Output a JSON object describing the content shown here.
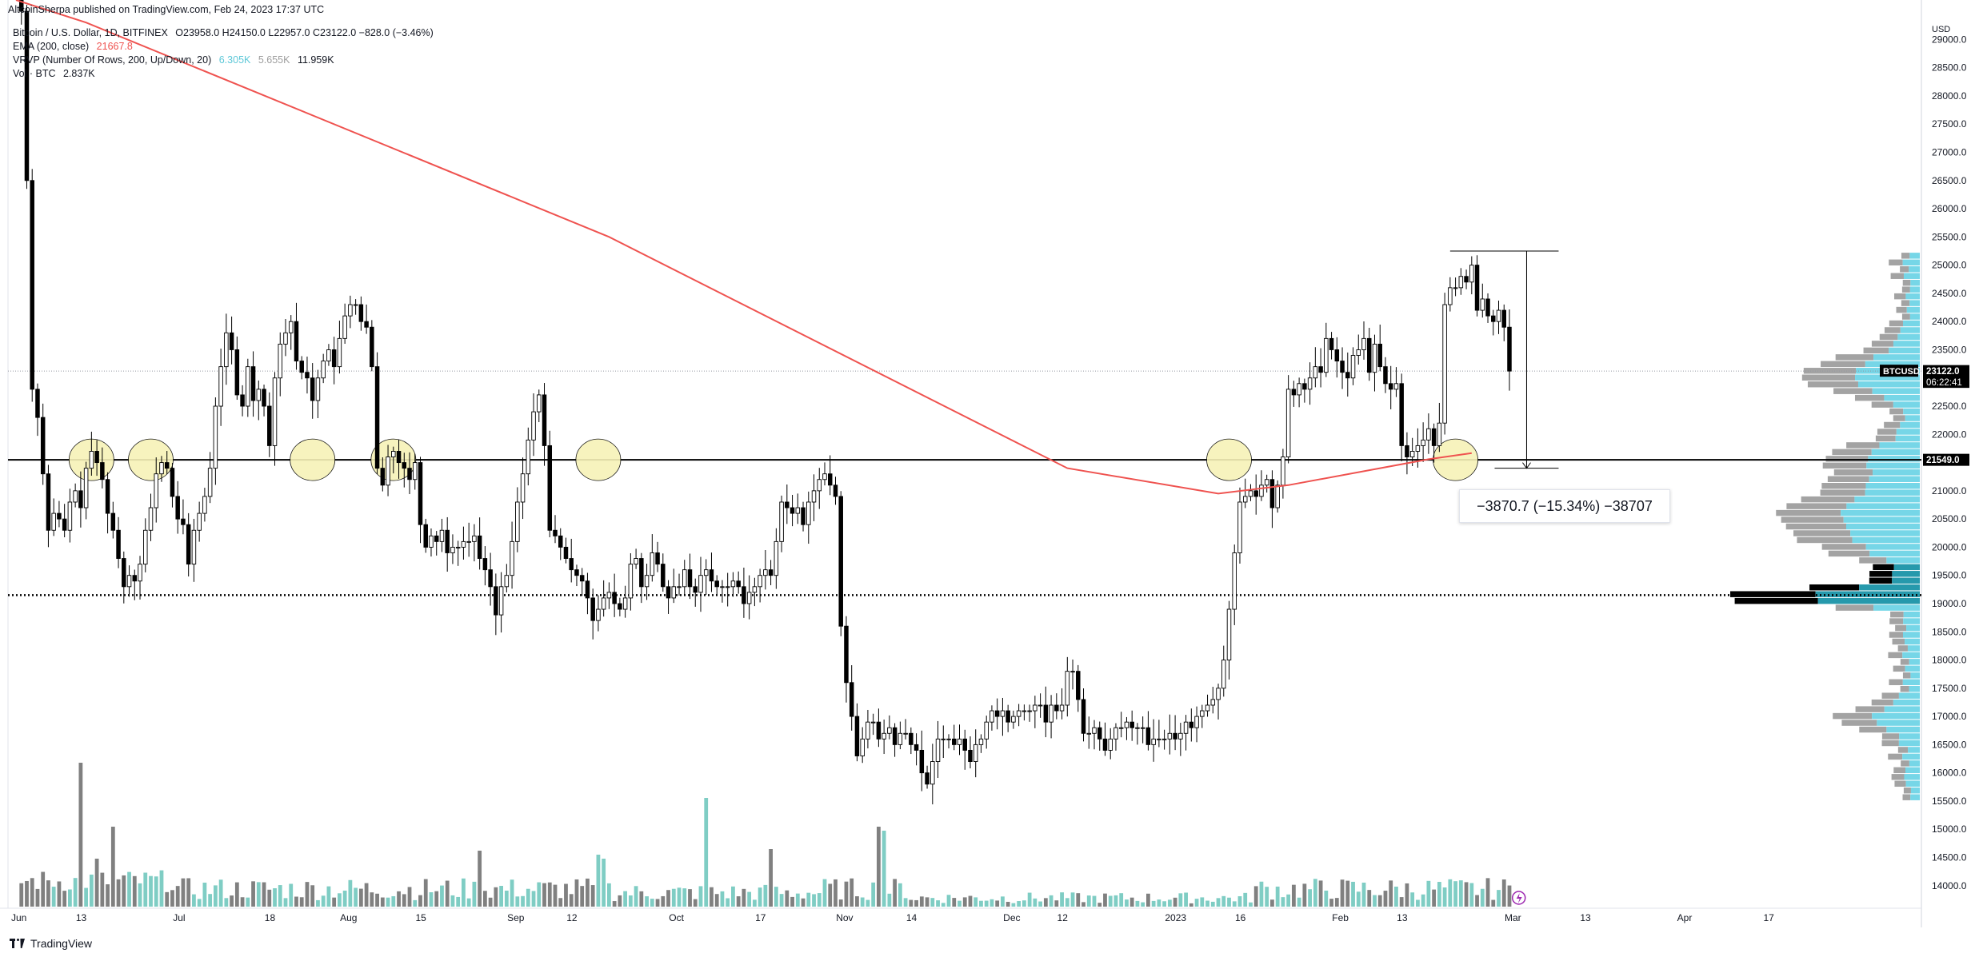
{
  "header": {
    "published": "AltcoinSherpa published on TradingView.com, Feb 24, 2023 17:37 UTC",
    "symbol": "Bitcoin / U.S. Dollar, 1D, BITFINEX",
    "ohlc": "O23958.0  H24150.0  L22957.0  C23122.0  −828.0 (−3.46%)"
  },
  "indicators": [
    {
      "label": "EMA (200, close)",
      "value": "21667.8",
      "color": "#ef5350"
    },
    {
      "label": "VRVP (Number Of Rows, 200, Up/Down, 20)",
      "values": [
        "6.305K",
        "5.655K",
        "11.959K"
      ],
      "color": "#5ec8d8"
    },
    {
      "label": "Vol · BTC",
      "value": "2.837K",
      "color": "#131722"
    }
  ],
  "annotation": "−3870.7 (−15.34%) −38707",
  "footer": "TradingView",
  "colors": {
    "up": "#ffffff",
    "down": "#000000",
    "ema": "#ef5350",
    "vol_up": "#7fcdc4",
    "vol_down": "#808080",
    "vrvp_up": "#6fd4e6",
    "vrvp_down": "#9e9e9e",
    "highlight": "#f7f2b8"
  },
  "chart_data": {
    "type": "candlestick",
    "currency": "USD",
    "y_axis_ticks": [
      14000,
      14500,
      15000,
      15500,
      16000,
      16500,
      17000,
      17500,
      18000,
      18500,
      19000,
      19500,
      20000,
      20500,
      21000,
      21500,
      22000,
      22500,
      23000,
      23500,
      24000,
      24500,
      25000,
      25500,
      26000,
      26500,
      27000,
      27500,
      28000,
      28500,
      29000
    ],
    "y_range": [
      13600,
      29700
    ],
    "x_axis_ticks": [
      "Jun",
      "13",
      "Jul",
      "18",
      "Aug",
      "15",
      "Sep",
      "12",
      "Oct",
      "17",
      "Nov",
      "14",
      "Dec",
      "12",
      "2023",
      "16",
      "Feb",
      "13",
      "Mar",
      "13",
      "Apr",
      "17"
    ],
    "last_price": {
      "symbol": "BTCUSD",
      "value": "23122.0",
      "countdown": "06:22:41"
    },
    "horizontal_lines": [
      {
        "label": "21549.0",
        "value": 21549,
        "style": "solid"
      },
      {
        "value": 19150,
        "style": "dotted"
      }
    ],
    "measure": {
      "from": 25250,
      "to": 21400,
      "text": "−3870.7 (−15.34%) −38707"
    },
    "close_series": [
      29700,
      29500,
      26500,
      22800,
      22300,
      21300,
      20300,
      20600,
      20500,
      20300,
      20800,
      21000,
      20700,
      21400,
      21700,
      21500,
      21200,
      20600,
      20300,
      19800,
      19300,
      19500,
      19400,
      19700,
      20300,
      20700,
      21300,
      21500,
      21400,
      20900,
      20500,
      20400,
      19700,
      20300,
      20600,
      20900,
      21400,
      22500,
      23200,
      23800,
      23500,
      22700,
      22500,
      23200,
      22600,
      22800,
      22500,
      21800,
      23000,
      23600,
      23800,
      24000,
      23300,
      23100,
      23000,
      22600,
      23000,
      23300,
      23500,
      23200,
      23700,
      24100,
      24300,
      24300,
      24000,
      23900,
      23200,
      21400,
      21100,
      21600,
      21700,
      21500,
      21400,
      21200,
      21500,
      20400,
      20000,
      20200,
      20100,
      20300,
      19900,
      20000,
      20000,
      20100,
      20100,
      20200,
      19800,
      19600,
      19300,
      18800,
      19300,
      19500,
      20100,
      20800,
      21300,
      21900,
      22400,
      22700,
      21800,
      20300,
      20200,
      20000,
      19800,
      19600,
      19500,
      19400,
      19100,
      18700,
      18900,
      19100,
      19200,
      19000,
      18900,
      19100,
      19700,
      19800,
      19300,
      19500,
      19900,
      19700,
      19300,
      19100,
      19300,
      19300,
      19600,
      19300,
      19200,
      19500,
      19600,
      19400,
      19300,
      19300,
      19300,
      19400,
      19300,
      19000,
      19200,
      19300,
      19500,
      19600,
      19500,
      20100,
      20800,
      20700,
      20600,
      20700,
      20400,
      20800,
      21000,
      21200,
      21300,
      21100,
      20900,
      18600,
      17600,
      17000,
      16300,
      16600,
      16900,
      16900,
      16600,
      16700,
      16800,
      16500,
      16700,
      16700,
      16500,
      16400,
      16000,
      15800,
      16200,
      16600,
      16600,
      16600,
      16500,
      16600,
      16400,
      16200,
      16500,
      16600,
      16900,
      17100,
      17000,
      17100,
      16900,
      17000,
      17100,
      17100,
      17100,
      17200,
      17200,
      16900,
      17200,
      17100,
      17200,
      17800,
      17800,
      17300,
      16700,
      16700,
      16800,
      16600,
      16400,
      16600,
      16800,
      16800,
      16900,
      16800,
      16800,
      16800,
      16500,
      16600,
      16600,
      16600,
      16700,
      16600,
      16700,
      16900,
      16800,
      17000,
      17100,
      17200,
      17300,
      17500,
      18000,
      18900,
      19900,
      20800,
      20900,
      21000,
      20900,
      21100,
      21200,
      20700,
      21100,
      21600,
      22800,
      22700,
      22900,
      22800,
      23000,
      23200,
      23100,
      23700,
      23500,
      23300,
      23100,
      23000,
      23400,
      23500,
      23700,
      23100,
      23600,
      23200,
      22900,
      22800,
      22900,
      21800,
      21600,
      21700,
      21800,
      21900,
      22100,
      21800,
      22200,
      24300,
      24600,
      24600,
      24800,
      24700,
      25000,
      24200,
      24400,
      24100,
      24000,
      24200,
      23900,
      23122
    ],
    "ema_200": [
      {
        "t": 0,
        "v": 29700
      },
      {
        "t": 13,
        "v": 29300
      },
      {
        "t": 110,
        "v": 25500
      },
      {
        "t": 195,
        "v": 21400
      },
      {
        "t": 223,
        "v": 20950
      },
      {
        "t": 236,
        "v": 21100
      },
      {
        "t": 262,
        "v": 21560
      },
      {
        "t": 270,
        "v": 21667.8
      }
    ],
    "volume_note": "volume histogram shown at bottom; green = up days, gray = down days",
    "volume_profile_note": "VRVP shown on right side of price pane"
  }
}
